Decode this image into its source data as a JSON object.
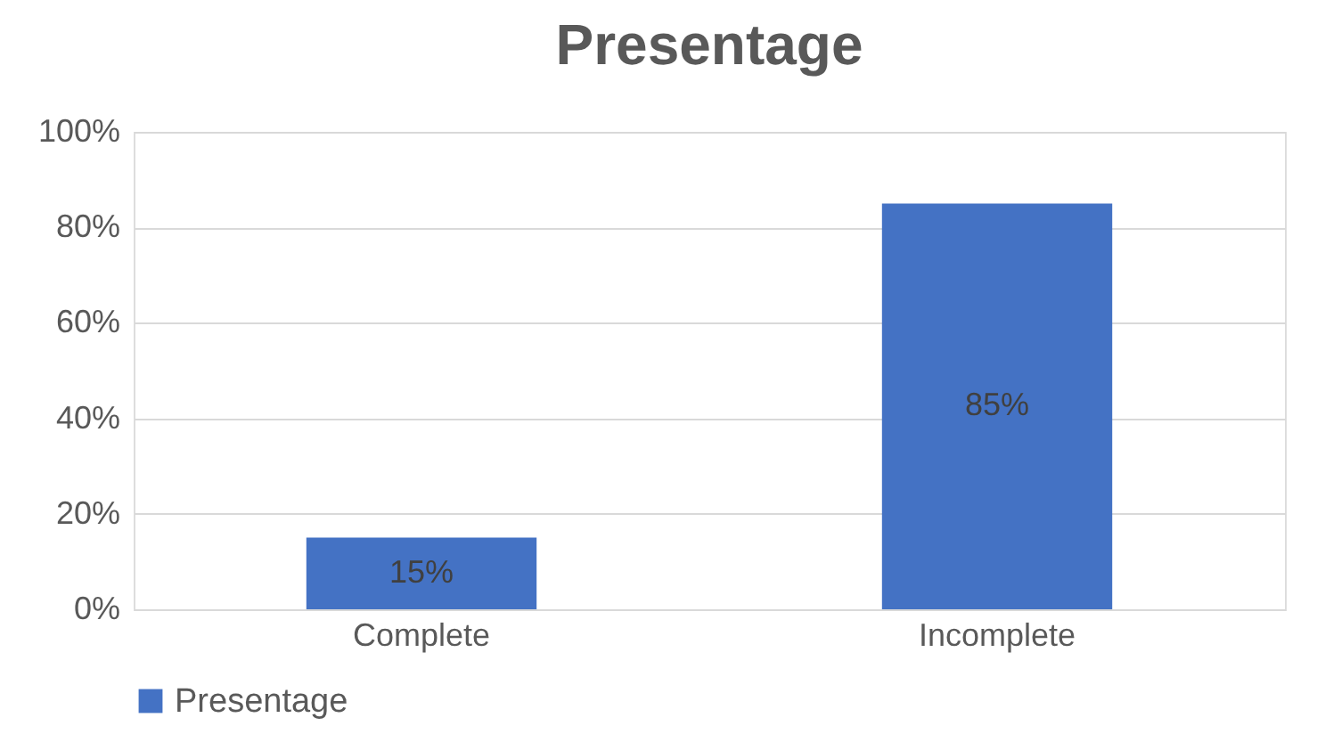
{
  "chart_data": {
    "type": "bar",
    "title": "Presentage",
    "categories": [
      "Complete",
      "Incomplete"
    ],
    "series": [
      {
        "name": "Presentage",
        "color": "#4472c4",
        "values": [
          15,
          85
        ],
        "value_labels": [
          "15%",
          "85%"
        ]
      }
    ],
    "ylim": [
      0,
      100
    ],
    "yticks": [
      {
        "value": 0,
        "label": "0%"
      },
      {
        "value": 20,
        "label": "20%"
      },
      {
        "value": 40,
        "label": "40%"
      },
      {
        "value": 60,
        "label": "60%"
      },
      {
        "value": 80,
        "label": "80%"
      },
      {
        "value": 100,
        "label": "100%"
      }
    ],
    "grid": "y",
    "legend": "bottom"
  }
}
